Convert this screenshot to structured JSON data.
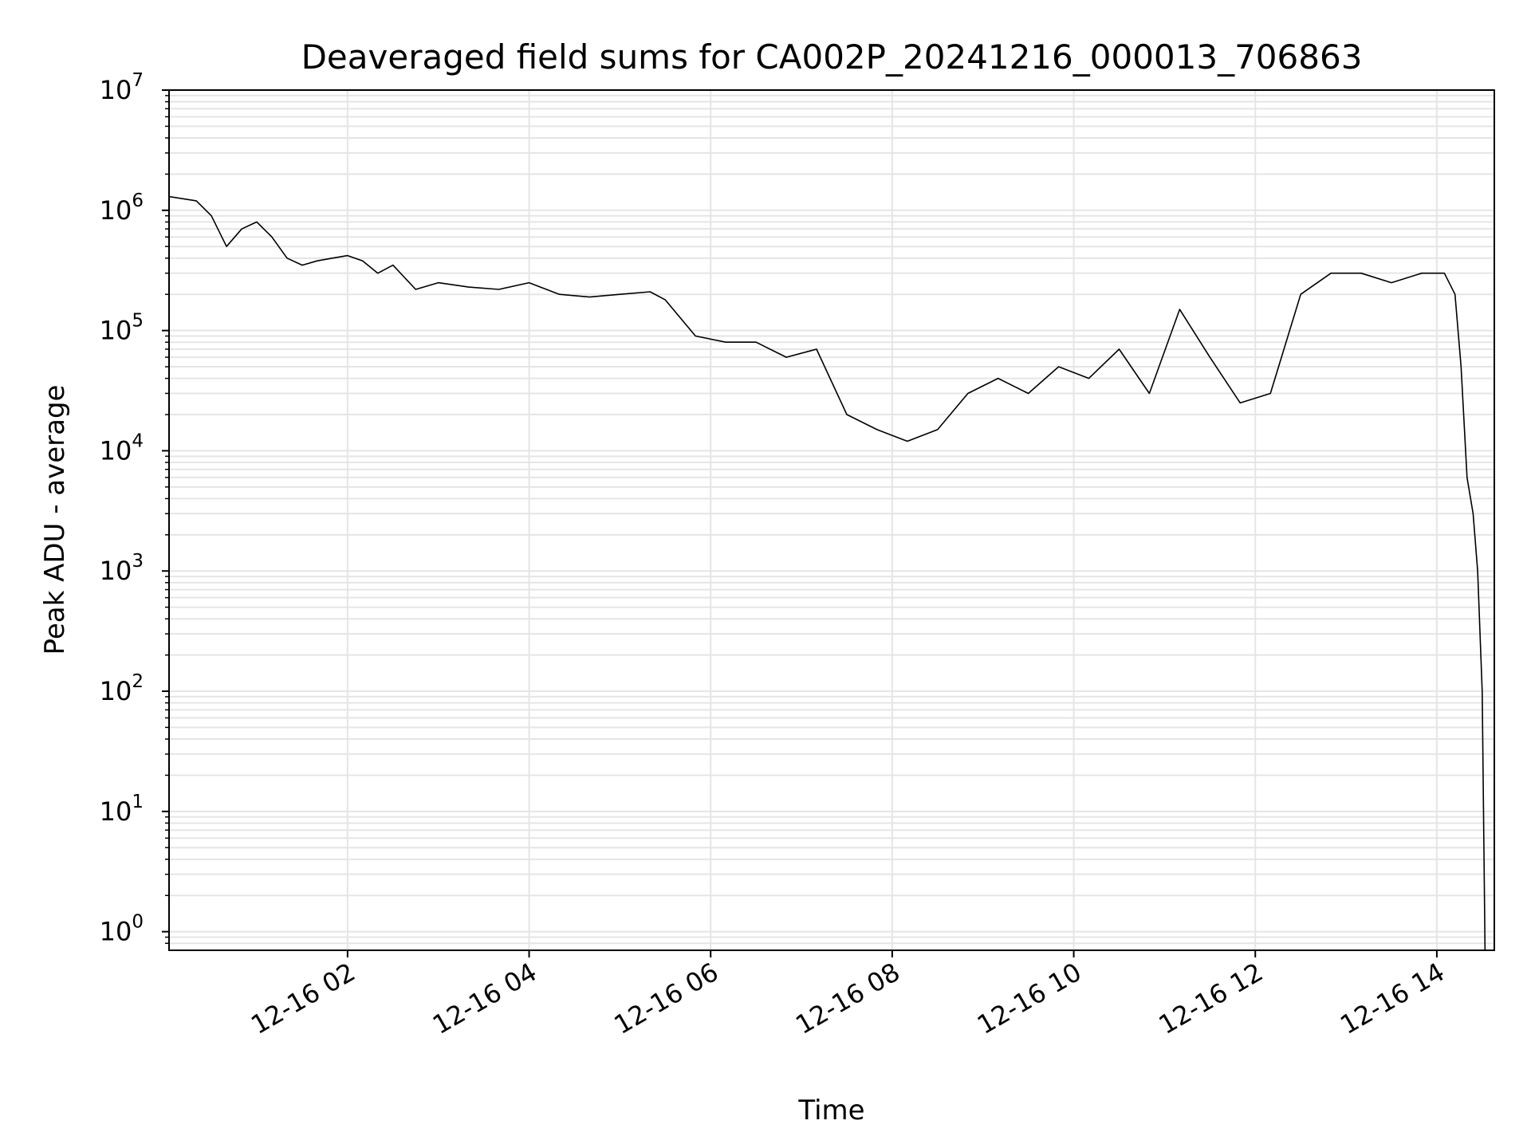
{
  "chart_data": {
    "type": "line",
    "title": "Deaveraged field sums for CA002P_20241216_000013_706863",
    "xlabel": "Time",
    "ylabel": "Peak ADU - average",
    "yscale": "log",
    "ylim": [
      0.7,
      10000000
    ],
    "xlim": [
      "2024-12-16 00:02",
      "2024-12-16 14:38"
    ],
    "grid": true,
    "legend": "none",
    "line_color": "#000000",
    "grid_color": "#e5e5e5",
    "x_ticks": [
      {
        "x": "2024-12-16 02:00",
        "label": "12-16 02"
      },
      {
        "x": "2024-12-16 04:00",
        "label": "12-16 04"
      },
      {
        "x": "2024-12-16 06:00",
        "label": "12-16 06"
      },
      {
        "x": "2024-12-16 08:00",
        "label": "12-16 08"
      },
      {
        "x": "2024-12-16 10:00",
        "label": "12-16 10"
      },
      {
        "x": "2024-12-16 12:00",
        "label": "12-16 12"
      },
      {
        "x": "2024-12-16 14:00",
        "label": "12-16 14"
      }
    ],
    "y_ticks": [
      {
        "value": 1,
        "base": "10",
        "exp": "0"
      },
      {
        "value": 10,
        "base": "10",
        "exp": "1"
      },
      {
        "value": 100,
        "base": "10",
        "exp": "2"
      },
      {
        "value": 1000,
        "base": "10",
        "exp": "3"
      },
      {
        "value": 10000,
        "base": "10",
        "exp": "4"
      },
      {
        "value": 100000,
        "base": "10",
        "exp": "5"
      },
      {
        "value": 1000000,
        "base": "10",
        "exp": "6"
      },
      {
        "value": 10000000,
        "base": "10",
        "exp": "7"
      }
    ],
    "series": [
      {
        "x": [
          "2024-12-16 00:02",
          "2024-12-16 00:20",
          "2024-12-16 00:30",
          "2024-12-16 00:40",
          "2024-12-16 00:50",
          "2024-12-16 01:00",
          "2024-12-16 01:10",
          "2024-12-16 01:20",
          "2024-12-16 01:30",
          "2024-12-16 01:40",
          "2024-12-16 01:50",
          "2024-12-16 02:00",
          "2024-12-16 02:10",
          "2024-12-16 02:20",
          "2024-12-16 02:30",
          "2024-12-16 02:45",
          "2024-12-16 03:00",
          "2024-12-16 03:20",
          "2024-12-16 03:40",
          "2024-12-16 04:00",
          "2024-12-16 04:20",
          "2024-12-16 04:40",
          "2024-12-16 05:00",
          "2024-12-16 05:20",
          "2024-12-16 05:30",
          "2024-12-16 05:50",
          "2024-12-16 06:10",
          "2024-12-16 06:30",
          "2024-12-16 06:50",
          "2024-12-16 07:10",
          "2024-12-16 07:30",
          "2024-12-16 07:50",
          "2024-12-16 08:10",
          "2024-12-16 08:30",
          "2024-12-16 08:50",
          "2024-12-16 09:10",
          "2024-12-16 09:30",
          "2024-12-16 09:50",
          "2024-12-16 10:10",
          "2024-12-16 10:30",
          "2024-12-16 10:50",
          "2024-12-16 11:10",
          "2024-12-16 11:30",
          "2024-12-16 11:50",
          "2024-12-16 12:10",
          "2024-12-16 12:30",
          "2024-12-16 12:50",
          "2024-12-16 13:10",
          "2024-12-16 13:30",
          "2024-12-16 13:50",
          "2024-12-16 14:05",
          "2024-12-16 14:12",
          "2024-12-16 14:16",
          "2024-12-16 14:20",
          "2024-12-16 14:24",
          "2024-12-16 14:27",
          "2024-12-16 14:30",
          "2024-12-16 14:32"
        ],
        "y": [
          1300000,
          1200000,
          900000,
          500000,
          700000,
          800000,
          600000,
          400000,
          350000,
          380000,
          400000,
          420000,
          380000,
          300000,
          350000,
          220000,
          250000,
          230000,
          220000,
          250000,
          200000,
          190000,
          200000,
          210000,
          180000,
          90000,
          80000,
          80000,
          60000,
          70000,
          20000,
          15000,
          12000,
          15000,
          30000,
          40000,
          30000,
          50000,
          40000,
          70000,
          30000,
          150000,
          60000,
          25000,
          30000,
          200000,
          300000,
          300000,
          250000,
          300000,
          300000,
          200000,
          50000,
          6000,
          3000,
          1000,
          100,
          0.5
        ]
      }
    ]
  }
}
